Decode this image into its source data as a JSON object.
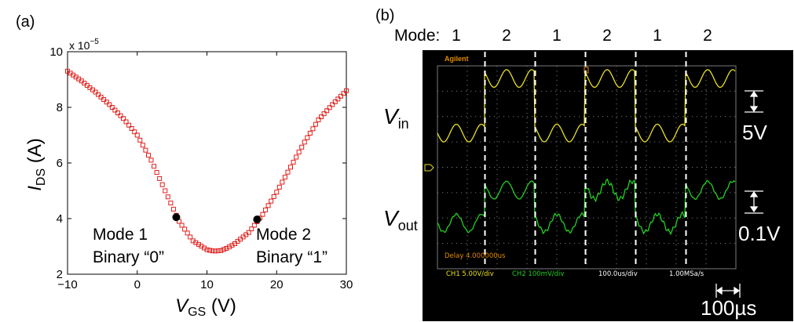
{
  "panel_labels": {
    "a": "(a)",
    "b": "(b)"
  },
  "chart_data": [
    {
      "type": "scatter",
      "panel": "(a)",
      "title": "",
      "xlabel": "V_GS (V)",
      "xlabel_main": "V",
      "xlabel_sub": "GS",
      "xlabel_unit": "(V)",
      "ylabel": "I_DS (A)",
      "ylabel_main": "I",
      "ylabel_sub": "DS",
      "ylabel_unit": "(A)",
      "y_multiplier": "x 10",
      "y_multiplier_exp": "−5",
      "xlim": [
        -10,
        30
      ],
      "ylim": [
        2,
        10
      ],
      "xticks": [
        -10,
        0,
        10,
        20,
        30
      ],
      "xtick_labels": [
        "−10",
        "0",
        "10",
        "20",
        "30"
      ],
      "yticks": [
        2,
        4,
        6,
        8,
        10
      ],
      "grid": false,
      "marker": "open-square",
      "color": "#e0201c",
      "curve": {
        "x": [
          -10,
          -8,
          -6,
          -4,
          -2,
          0,
          2,
          4,
          6,
          8,
          10,
          11,
          12,
          13,
          14,
          16,
          18,
          20,
          22,
          24,
          26,
          28,
          30
        ],
        "y": [
          9.3,
          8.95,
          8.55,
          8.1,
          7.6,
          7.0,
          6.1,
          5.0,
          3.9,
          3.2,
          2.88,
          2.83,
          2.85,
          2.95,
          3.1,
          3.5,
          4.15,
          4.95,
          5.85,
          6.75,
          7.55,
          8.1,
          8.6
        ]
      },
      "highlighted_points": [
        {
          "x": 5.6,
          "y": 4.05,
          "label_line1": "Mode 1",
          "label_line2": "Binary “0”"
        },
        {
          "x": 17.2,
          "y": 3.97,
          "label_line1": "Mode 2",
          "label_line2": "Binary “1”"
        }
      ]
    },
    {
      "type": "line",
      "panel": "(b)",
      "mode_prefix": "Mode:",
      "modes": [
        "1",
        "2",
        "1",
        "2",
        "1",
        "2"
      ],
      "scope_brand": "Agilent",
      "delay_readout": "Delay 4.000000us",
      "status_bar": [
        "CH1 5.00V/div",
        "CH2 100mV/div",
        "100.0us/div",
        "1.00MSa/s"
      ],
      "colors": {
        "ch1": "#e8e020",
        "ch2": "#20d020",
        "scope_text": "#e08a00",
        "background": "#000000"
      },
      "series": [
        {
          "name": "V_in",
          "label_main": "V",
          "label_sub": "in",
          "scale_label": "5V",
          "segments_mode": [
            "1",
            "2",
            "1",
            "2",
            "1",
            "2"
          ],
          "amplitude_divs": 0.35,
          "low_level_divs": 2.65,
          "high_level_divs": 0.5
        },
        {
          "name": "V_out",
          "label_main": "V",
          "label_sub": "out",
          "scale_label": "0.1V",
          "segments_mode": [
            "1",
            "2",
            "1",
            "2",
            "1",
            "2"
          ],
          "amplitude_divs": 0.35,
          "low_level_divs": 6.2,
          "high_level_divs": 4.9
        }
      ],
      "time_scale_label": "100µs"
    }
  ]
}
